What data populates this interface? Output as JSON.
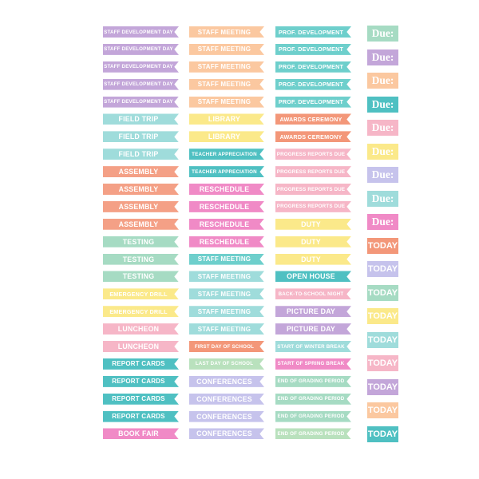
{
  "colors": {
    "lavender": "#c3a6d9",
    "peach": "#fbc8a0",
    "teal": "#6ecfcc",
    "lightblue": "#9fdcdb",
    "yellow": "#fbe98a",
    "coral": "#f4a086",
    "pink": "#f08ac6",
    "mint": "#a6dbc3",
    "rose": "#f6b6c7",
    "sage": "#b9e1bd",
    "periwinkle": "#c6c3ec",
    "orange": "#f39779",
    "dark_teal": "#4fc0c2"
  },
  "column1": [
    {
      "label": "STAFF DEVELOPMENT DAY",
      "color": "#c3a6d9"
    },
    {
      "label": "STAFF DEVELOPMENT DAY",
      "color": "#c3a6d9"
    },
    {
      "label": "STAFF DEVELOPMENT DAY",
      "color": "#c3a6d9"
    },
    {
      "label": "STAFF DEVELOPMENT DAY",
      "color": "#c3a6d9"
    },
    {
      "label": "STAFF DEVELOPMENT DAY",
      "color": "#c3a6d9"
    },
    {
      "label": "FIELD TRIP",
      "color": "#9fdcdb"
    },
    {
      "label": "FIELD TRIP",
      "color": "#9fdcdb"
    },
    {
      "label": "FIELD TRIP",
      "color": "#9fdcdb"
    },
    {
      "label": "ASSEMBLY",
      "color": "#f4a086"
    },
    {
      "label": "ASSEMBLY",
      "color": "#f4a086"
    },
    {
      "label": "ASSEMBLY",
      "color": "#f4a086"
    },
    {
      "label": "ASSEMBLY",
      "color": "#f4a086"
    },
    {
      "label": "TESTING",
      "color": "#a6dbc3"
    },
    {
      "label": "TESTING",
      "color": "#a6dbc3"
    },
    {
      "label": "TESTING",
      "color": "#a6dbc3"
    },
    {
      "label": "EMERGENCY DRILL",
      "color": "#fbe98a"
    },
    {
      "label": "EMERGENCY DRILL",
      "color": "#fbe98a"
    },
    {
      "label": "LUNCHEON",
      "color": "#f6b6c7"
    },
    {
      "label": "LUNCHEON",
      "color": "#f6b6c7"
    },
    {
      "label": "REPORT CARDS",
      "color": "#4fc0c2"
    },
    {
      "label": "REPORT CARDS",
      "color": "#4fc0c2"
    },
    {
      "label": "REPORT CARDS",
      "color": "#4fc0c2"
    },
    {
      "label": "REPORT CARDS",
      "color": "#4fc0c2"
    },
    {
      "label": "BOOK FAIR",
      "color": "#f08ac6"
    }
  ],
  "column2": [
    {
      "label": "STAFF MEETING",
      "color": "#fbc8a0"
    },
    {
      "label": "STAFF MEETING",
      "color": "#fbc8a0"
    },
    {
      "label": "STAFF MEETING",
      "color": "#fbc8a0"
    },
    {
      "label": "STAFF MEETING",
      "color": "#fbc8a0"
    },
    {
      "label": "STAFF MEETING",
      "color": "#fbc8a0"
    },
    {
      "label": "LIBRARY",
      "color": "#fbe98a"
    },
    {
      "label": "LIBRARY",
      "color": "#fbe98a"
    },
    {
      "label": "TEACHER APPRECIATION",
      "color": "#4fc0c2"
    },
    {
      "label": "TEACHER APPRECIATION",
      "color": "#4fc0c2"
    },
    {
      "label": "RESCHEDULE",
      "color": "#f08ac6"
    },
    {
      "label": "RESCHEDULE",
      "color": "#f08ac6"
    },
    {
      "label": "RESCHEDULE",
      "color": "#f08ac6"
    },
    {
      "label": "RESCHEDULE",
      "color": "#f08ac6"
    },
    {
      "label": "STAFF MEETING",
      "color": "#6ecfcc"
    },
    {
      "label": "STAFF MEETING",
      "color": "#9fdcdb"
    },
    {
      "label": "STAFF MEETING",
      "color": "#9fdcdb"
    },
    {
      "label": "STAFF MEETING",
      "color": "#9fdcdb"
    },
    {
      "label": "STAFF MEETING",
      "color": "#9fdcdb"
    },
    {
      "label": "FIRST DAY OF SCHOOL",
      "color": "#f39779"
    },
    {
      "label": "LAST DAY OF SCHOOL",
      "color": "#b9e1bd"
    },
    {
      "label": "CONFERENCES",
      "color": "#c6c3ec"
    },
    {
      "label": "CONFERENCES",
      "color": "#c6c3ec"
    },
    {
      "label": "CONFERENCES",
      "color": "#c6c3ec"
    },
    {
      "label": "CONFERENCES",
      "color": "#c6c3ec"
    }
  ],
  "column3": [
    {
      "label": "PROF. DEVELOPMENT",
      "color": "#6ecfcc"
    },
    {
      "label": "PROF. DEVELOPMENT",
      "color": "#6ecfcc"
    },
    {
      "label": "PROF. DEVELOPMENT",
      "color": "#6ecfcc"
    },
    {
      "label": "PROF. DEVELOPMENT",
      "color": "#6ecfcc"
    },
    {
      "label": "PROF. DEVELOPMENT",
      "color": "#6ecfcc"
    },
    {
      "label": "AWARDS CEREMONY",
      "color": "#f39779"
    },
    {
      "label": "AWARDS CEREMONY",
      "color": "#f39779"
    },
    {
      "label": "PROGRESS REPORTS DUE",
      "color": "#f6b6c7"
    },
    {
      "label": "PROGRESS REPORTS DUE",
      "color": "#f6b6c7"
    },
    {
      "label": "PROGRESS REPORTS DUE",
      "color": "#f6b6c7"
    },
    {
      "label": "PROGRESS REPORTS DUE",
      "color": "#f6b6c7"
    },
    {
      "label": "DUTY",
      "color": "#fbe98a"
    },
    {
      "label": "DUTY",
      "color": "#fbe98a"
    },
    {
      "label": "DUTY",
      "color": "#fbe98a"
    },
    {
      "label": "OPEN HOUSE",
      "color": "#4fc0c2"
    },
    {
      "label": "BACK-TO-SCHOOL NIGHT",
      "color": "#f6b6c7"
    },
    {
      "label": "PICTURE DAY",
      "color": "#c3a6d9"
    },
    {
      "label": "PICTURE DAY",
      "color": "#c3a6d9"
    },
    {
      "label": "START OF WINTER BREAK",
      "color": "#9fdcdb"
    },
    {
      "label": "START OF SPRING BREAK",
      "color": "#f08ac6"
    },
    {
      "label": "END OF GRADING PERIOD",
      "color": "#a6dbc3"
    },
    {
      "label": "END OF GRADING PERIOD",
      "color": "#a6dbc3"
    },
    {
      "label": "END OF GRADING PERIOD",
      "color": "#a6dbc3"
    },
    {
      "label": "END OF GRADING PERIOD",
      "color": "#b9e1bd"
    }
  ],
  "stickers": [
    {
      "label": "Due:",
      "color": "#a6dbc3"
    },
    {
      "label": "Due:",
      "color": "#c3a6d9"
    },
    {
      "label": "Due:",
      "color": "#fbc8a0"
    },
    {
      "label": "Due:",
      "color": "#4fc0c2"
    },
    {
      "label": "Due:",
      "color": "#f6b6c7"
    },
    {
      "label": "Due:",
      "color": "#fbe98a"
    },
    {
      "label": "Due:",
      "color": "#c6c3ec"
    },
    {
      "label": "Due:",
      "color": "#9fdcdb"
    },
    {
      "label": "Due:",
      "color": "#f08ac6"
    },
    {
      "label": "TODAY",
      "color": "#f39779"
    },
    {
      "label": "TODAY",
      "color": "#c6c3ec"
    },
    {
      "label": "TODAY",
      "color": "#a6dbc3"
    },
    {
      "label": "TODAY",
      "color": "#fbe98a"
    },
    {
      "label": "TODAY",
      "color": "#9fdcdb"
    },
    {
      "label": "TODAY",
      "color": "#f6b6c7"
    },
    {
      "label": "TODAY",
      "color": "#c3a6d9"
    },
    {
      "label": "TODAY",
      "color": "#fbc8a0"
    },
    {
      "label": "TODAY",
      "color": "#4fc0c2"
    }
  ]
}
